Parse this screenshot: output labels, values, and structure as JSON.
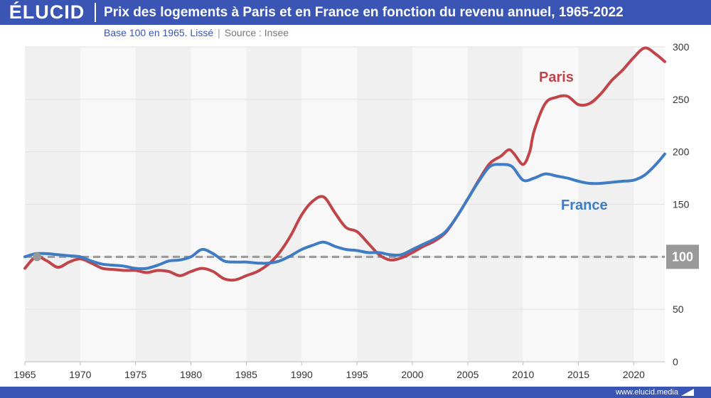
{
  "header": {
    "logo": "ÉLUCID",
    "title": "Prix des logements à Paris et en France en fonction du revenu annuel, 1965-2022"
  },
  "subtitle": {
    "base": "Base 100 en 1965. Lissé",
    "separator": "|",
    "source": "Source : Insee"
  },
  "footer": {
    "url": "www.elucid.media"
  },
  "colors": {
    "brand": "#3a55b4",
    "paris": "#c0454a",
    "france": "#3f7cc3",
    "reference": "#999999"
  },
  "chart_data": {
    "type": "line",
    "x_ticks": [
      1965,
      1970,
      1975,
      1980,
      1985,
      1990,
      1995,
      2000,
      2005,
      2010,
      2015,
      2020
    ],
    "y_ticks": [
      0,
      50,
      100,
      150,
      200,
      250,
      300
    ],
    "xlim": [
      1965,
      2022.8
    ],
    "ylim": [
      0,
      300
    ],
    "reference_line": {
      "value": 100,
      "label": "100"
    },
    "series": [
      {
        "name": "Paris",
        "x": [
          1965,
          1966,
          1967,
          1968,
          1969,
          1970,
          1971,
          1972,
          1973,
          1974,
          1975,
          1976,
          1977,
          1978,
          1979,
          1980,
          1981,
          1982,
          1983,
          1984,
          1985,
          1986,
          1987,
          1988,
          1989,
          1990,
          1991,
          1992,
          1993,
          1994,
          1995,
          1996,
          1997,
          1998,
          1999,
          2000,
          2001,
          2002,
          2003,
          2004,
          2005,
          2006,
          2007,
          2008,
          2008.7,
          2009.2,
          2010,
          2010.6,
          2011,
          2012,
          2013,
          2014,
          2015,
          2016,
          2017,
          2018,
          2019,
          2020,
          2021,
          2022,
          2022.8
        ],
        "values": [
          89,
          100,
          96,
          90,
          95,
          98,
          94,
          89,
          88,
          87,
          87,
          85,
          87,
          86,
          82,
          86,
          89,
          86,
          79,
          78,
          82,
          86,
          93,
          104,
          120,
          140,
          153,
          157,
          142,
          128,
          124,
          113,
          102,
          97,
          99,
          104,
          110,
          115,
          123,
          138,
          155,
          173,
          189,
          196,
          202,
          198,
          188,
          200,
          220,
          246,
          252,
          253,
          245,
          246,
          255,
          268,
          278,
          290,
          299,
          293,
          286
        ]
      },
      {
        "name": "France",
        "x": [
          1965,
          1966,
          1967,
          1968,
          1969,
          1970,
          1971,
          1972,
          1973,
          1974,
          1975,
          1976,
          1977,
          1978,
          1979,
          1980,
          1981,
          1982,
          1983,
          1984,
          1985,
          1986,
          1987,
          1988,
          1989,
          1990,
          1991,
          1992,
          1993,
          1994,
          1995,
          1996,
          1997,
          1998,
          1999,
          2000,
          2001,
          2002,
          2003,
          2004,
          2005,
          2006,
          2007,
          2008,
          2009,
          2010,
          2011,
          2012,
          2013,
          2014,
          2015,
          2016,
          2017,
          2018,
          2019,
          2020,
          2021,
          2022,
          2022.8
        ],
        "values": [
          100,
          103,
          103,
          102,
          101,
          100,
          96,
          93,
          92,
          91,
          89,
          89,
          92,
          96,
          97,
          100,
          107,
          103,
          96,
          95,
          95,
          94,
          94,
          96,
          101,
          107,
          111,
          114,
          110,
          107,
          106,
          104,
          104,
          102,
          102,
          107,
          112,
          117,
          124,
          138,
          155,
          172,
          186,
          188,
          186,
          173,
          175,
          179,
          177,
          175,
          172,
          170,
          170,
          171,
          172,
          173,
          178,
          188,
          198
        ]
      }
    ],
    "annotations": [
      {
        "text": "Paris",
        "series": "Paris"
      },
      {
        "text": "France",
        "series": "France"
      }
    ]
  }
}
